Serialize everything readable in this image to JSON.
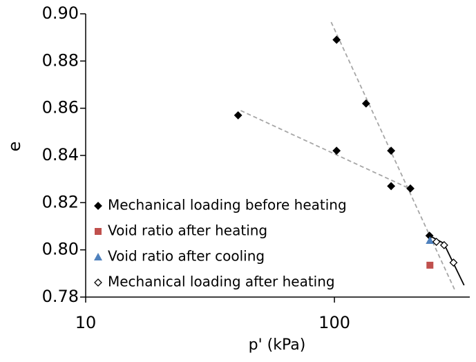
{
  "chart_data": {
    "type": "scatter",
    "x_label": "p' (kPa)",
    "y_label": "e",
    "xscale": "log",
    "xlim": [
      10,
      350
    ],
    "xticks": [
      10,
      100
    ],
    "ylim": [
      0.78,
      0.9
    ],
    "yticks": [
      0.78,
      {
        "value": 0.8,
        "label": "0.80"
      },
      0.82,
      0.84,
      0.86,
      0.88,
      {
        "value": 0.9,
        "label": "0.90"
      }
    ],
    "series": [
      {
        "name": "Mechanical loading before heating",
        "marker": "diamond",
        "color": "#000000",
        "x": [
          41,
          102,
          102,
          134,
          169,
          169,
          202,
          241
        ],
        "values": [
          0.857,
          0.889,
          0.842,
          0.862,
          0.842,
          0.827,
          0.826,
          0.806
        ]
      },
      {
        "name": "Void ratio after heating",
        "marker": "square",
        "color": "#c0504d",
        "x": [
          242
        ],
        "values": [
          0.7935
        ]
      },
      {
        "name": "Void ratio after cooling",
        "marker": "triangle",
        "color": "#4f81bd",
        "x": [
          242
        ],
        "values": [
          0.804
        ]
      },
      {
        "name": "Mechanical loading after heating",
        "marker": "diamond-open",
        "color": "#000000",
        "x": [
          257,
          276,
          301
        ],
        "values": [
          0.8034,
          0.802,
          0.7946
        ]
      }
    ],
    "lines": [
      {
        "style": "dashed",
        "color": "#a6a6a6",
        "x": [
          42,
          200
        ],
        "values": [
          0.859,
          0.826
        ]
      },
      {
        "style": "dashed",
        "color": "#a6a6a6",
        "x": [
          97,
          305
        ],
        "values": [
          0.8965,
          0.7829
        ]
      },
      {
        "style": "solid",
        "color": "#000000",
        "x": [
          241,
          275,
          332
        ],
        "values": [
          0.806,
          0.8028,
          0.785
        ]
      }
    ]
  }
}
